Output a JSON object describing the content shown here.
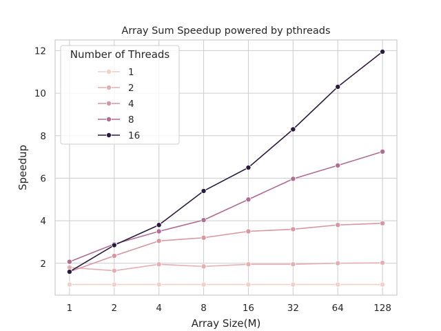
{
  "chart_data": {
    "type": "line",
    "title": "Array Sum Speedup powered by pthreads",
    "xlabel": "Array Size(M)",
    "ylabel": "Speedup",
    "x": [
      1,
      2,
      4,
      8,
      16,
      32,
      64,
      128
    ],
    "x_tick_labels": [
      "1",
      "2",
      "4",
      "8",
      "16",
      "32",
      "64",
      "128"
    ],
    "x_scale": "log2",
    "xlim": [
      0.8,
      160
    ],
    "ylim": [
      0.5,
      12.5
    ],
    "y_ticks": [
      2,
      4,
      6,
      8,
      10,
      12
    ],
    "y_tick_labels": [
      "2",
      "4",
      "6",
      "8",
      "10",
      "12"
    ],
    "grid": true,
    "legend": {
      "title": "Number of Threads",
      "placement": "top-left"
    },
    "series": [
      {
        "name": "1",
        "color": "#f1d0c8",
        "values": [
          1.0,
          1.0,
          1.0,
          1.0,
          1.0,
          1.0,
          1.0,
          1.0
        ]
      },
      {
        "name": "2",
        "color": "#e5aeb0",
        "values": [
          1.8,
          1.65,
          1.95,
          1.85,
          1.95,
          1.95,
          2.0,
          2.02
        ]
      },
      {
        "name": "4",
        "color": "#d796a0",
        "values": [
          1.6,
          2.35,
          3.05,
          3.2,
          3.5,
          3.6,
          3.8,
          3.88
        ]
      },
      {
        "name": "8",
        "color": "#b06c92",
        "values": [
          2.07,
          2.9,
          3.5,
          4.03,
          5.0,
          5.97,
          6.6,
          7.25
        ]
      },
      {
        "name": "16",
        "color": "#2b1a3f",
        "values": [
          1.6,
          2.85,
          3.8,
          5.4,
          6.5,
          8.3,
          10.3,
          11.95
        ]
      }
    ]
  }
}
